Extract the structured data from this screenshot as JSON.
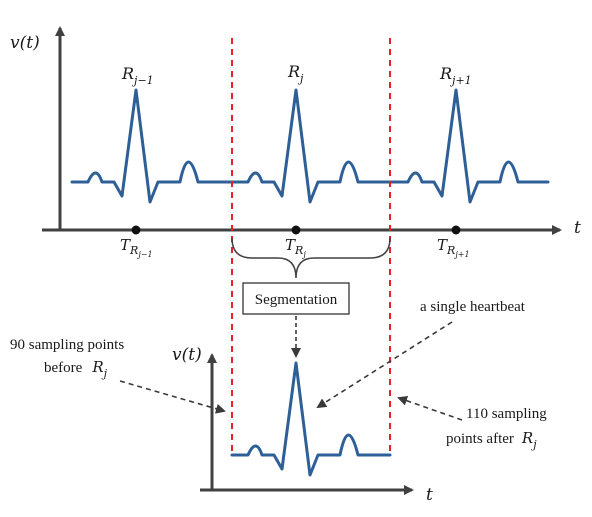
{
  "top_axis": {
    "y_label": "v(t)",
    "x_label": "t"
  },
  "peaks": [
    {
      "label": "R",
      "sub": "j−1"
    },
    {
      "label": "R",
      "sub": "j"
    },
    {
      "label": "R",
      "sub": "j+1"
    }
  ],
  "time_marks": [
    {
      "label": "T",
      "sub": "R",
      "subsub": "j−1"
    },
    {
      "label": "T",
      "sub": "R",
      "subsub": "j"
    },
    {
      "label": "T",
      "sub": "R",
      "subsub": "j+1"
    }
  ],
  "segmentation_label": "Segmentation",
  "bottom_axis": {
    "y_label": "v(t)",
    "x_label": "t"
  },
  "annotations": {
    "single_heartbeat": "a single heartbeat",
    "before_line1": "90 sampling points",
    "before_line2_prefix": "before",
    "before_line2_var": "R",
    "before_line2_sub": "j",
    "after_line1": "110 sampling",
    "after_line2_prefix": "points after",
    "after_line2_var": "R",
    "after_line2_sub": "j"
  },
  "colors": {
    "signal": "#2e5f96",
    "axis": "#404040",
    "dashed_boundary": "#e8202a",
    "arrow": "#3a3a3a"
  }
}
